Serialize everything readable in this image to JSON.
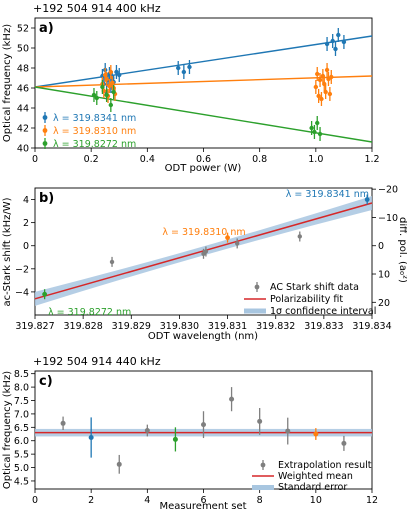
{
  "colors": {
    "blue": "#1f77b4",
    "orange": "#ff7f0e",
    "green": "#2ca02c",
    "gray": "#7f7f7f",
    "red": "#d62728",
    "band": "#a8c6e0"
  },
  "chart_data": [
    {
      "panel": "a)",
      "type": "scatter",
      "offset_label": "+192 504 914 400 kHz",
      "xlabel": "ODT power (W)",
      "ylabel": "Optical frequency (kHz)",
      "xlim": [
        0,
        1.2
      ],
      "ylim": [
        40,
        53
      ],
      "xticks": [
        "0",
        "0.2",
        "0.4",
        "0.6",
        "0.8",
        "1.0",
        "1.2"
      ],
      "yticks": [
        "40",
        "42",
        "44",
        "46",
        "48",
        "50",
        "52"
      ],
      "legend_position": "lower-left",
      "series": [
        {
          "name": "λ = 319.8341 nm",
          "color_key": "blue",
          "points": [
            [
              0.24,
              47.2
            ],
            [
              0.245,
              46.4
            ],
            [
              0.25,
              47.8
            ],
            [
              0.255,
              45.6
            ],
            [
              0.26,
              46.8
            ],
            [
              0.265,
              47.4
            ],
            [
              0.27,
              46.2
            ],
            [
              0.275,
              47.0
            ],
            [
              0.28,
              46.6
            ],
            [
              0.29,
              47.6
            ],
            [
              0.3,
              47.3
            ],
            [
              0.51,
              48.0
            ],
            [
              0.53,
              47.6
            ],
            [
              0.55,
              48.1
            ],
            [
              1.04,
              50.4
            ],
            [
              1.06,
              50.7
            ],
            [
              1.07,
              49.9
            ],
            [
              1.08,
              51.3
            ],
            [
              1.1,
              50.6
            ]
          ],
          "fit": [
            [
              0,
              46.1
            ],
            [
              1.2,
              51.2
            ]
          ]
        },
        {
          "name": "λ = 319.8310 nm",
          "color_key": "orange",
          "points": [
            [
              0.24,
              46.4
            ],
            [
              0.245,
              45.7
            ],
            [
              0.25,
              47.3
            ],
            [
              0.255,
              46.9
            ],
            [
              0.26,
              45.2
            ],
            [
              0.265,
              46.2
            ],
            [
              0.27,
              47.6
            ],
            [
              0.275,
              46.5
            ],
            [
              0.28,
              46.0
            ],
            [
              0.285,
              45.4
            ],
            [
              1.0,
              46.1
            ],
            [
              1.005,
              47.4
            ],
            [
              1.01,
              45.2
            ],
            [
              1.015,
              46.8
            ],
            [
              1.02,
              44.9
            ],
            [
              1.025,
              47.2
            ],
            [
              1.03,
              46.4
            ],
            [
              1.035,
              45.6
            ],
            [
              1.04,
              47.8
            ],
            [
              1.045,
              46.9
            ],
            [
              1.05,
              45.4
            ],
            [
              1.055,
              47.1
            ]
          ],
          "fit": [
            [
              0,
              46.1
            ],
            [
              1.2,
              47.2
            ]
          ]
        },
        {
          "name": "λ = 319.8272 nm",
          "color_key": "green",
          "points": [
            [
              0.21,
              45.3
            ],
            [
              0.22,
              45.0
            ],
            [
              0.24,
              46.1
            ],
            [
              0.255,
              45.3
            ],
            [
              0.27,
              44.3
            ],
            [
              0.28,
              45.6
            ],
            [
              0.985,
              42.0
            ],
            [
              0.995,
              41.6
            ],
            [
              1.005,
              42.5
            ],
            [
              1.015,
              41.4
            ]
          ],
          "fit": [
            [
              0,
              46.1
            ],
            [
              1.2,
              40.6
            ]
          ]
        }
      ]
    },
    {
      "panel": "b)",
      "type": "scatter",
      "xlabel": "ODT wavelength (nm)",
      "ylabel": "ac-Stark shift (kHz/W)",
      "ylabel_right": "diff. pol. (a₀²)",
      "xlim": [
        319.827,
        319.834
      ],
      "ylim": [
        -6,
        5
      ],
      "xticks": [
        "319.827",
        "319.828",
        "319.829",
        "319.830",
        "319.831",
        "319.832",
        "319.833",
        "319.834"
      ],
      "yticks": [
        "−4",
        "−2",
        "0",
        "2",
        "4"
      ],
      "yticks_right": [
        "−20",
        "−10",
        "0",
        "10",
        "20"
      ],
      "legend_position": "lower-right",
      "legend": [
        "AC Stark shift data",
        "Polarizability fit",
        "1σ confidence interval"
      ],
      "annotations": [
        "λ = 319.8341 nm",
        "λ = 319.8310 nm",
        "λ = 319.8272 nm"
      ],
      "gray_points": [
        [
          319.8286,
          -1.4
        ],
        [
          319.8305,
          -0.7
        ],
        [
          319.83055,
          -0.5
        ],
        [
          319.8312,
          0.2
        ],
        [
          319.8325,
          0.8
        ]
      ],
      "colored_points": [
        {
          "color_key": "blue",
          "x": 319.8339,
          "y": 4.0
        },
        {
          "color_key": "orange",
          "x": 319.831,
          "y": 0.7
        },
        {
          "color_key": "green",
          "x": 319.8272,
          "y": -4.2
        }
      ],
      "fit": [
        [
          319.827,
          -4.6
        ],
        [
          319.834,
          3.7
        ]
      ]
    },
    {
      "panel": "c)",
      "type": "scatter",
      "offset_label": "+192 504 914 440 kHz",
      "xlabel": "Measurement set",
      "ylabel": "Optical frequency (kHz)",
      "xlim": [
        0,
        12
      ],
      "ylim": [
        4.2,
        8.6
      ],
      "xticks": [
        "0",
        "2",
        "4",
        "6",
        "8",
        "10",
        "12"
      ],
      "yticks": [
        "4.5",
        "5.0",
        "5.5",
        "6.0",
        "6.5",
        "7.0",
        "7.5",
        "8.0",
        "8.5"
      ],
      "legend_position": "lower-right",
      "legend": [
        "Extrapolation result",
        "Weighted mean",
        "Standard error"
      ],
      "weighted_mean": 6.3,
      "standard_error": 0.14,
      "points": [
        {
          "x": 1,
          "y": 6.65,
          "err": 0.25,
          "color_key": "gray"
        },
        {
          "x": 2,
          "y": 6.12,
          "err": 0.75,
          "color_key": "blue"
        },
        {
          "x": 3,
          "y": 5.12,
          "err": 0.35,
          "color_key": "gray"
        },
        {
          "x": 4,
          "y": 6.38,
          "err": 0.22,
          "color_key": "gray"
        },
        {
          "x": 5,
          "y": 6.05,
          "err": 0.45,
          "color_key": "green"
        },
        {
          "x": 6,
          "y": 6.6,
          "err": 0.5,
          "color_key": "gray"
        },
        {
          "x": 7,
          "y": 7.55,
          "err": 0.45,
          "color_key": "gray"
        },
        {
          "x": 8,
          "y": 6.72,
          "err": 0.5,
          "color_key": "gray"
        },
        {
          "x": 9,
          "y": 6.36,
          "err": 0.5,
          "color_key": "gray"
        },
        {
          "x": 10,
          "y": 6.25,
          "err": 0.22,
          "color_key": "orange"
        },
        {
          "x": 11,
          "y": 5.9,
          "err": 0.28,
          "color_key": "gray"
        }
      ]
    }
  ]
}
